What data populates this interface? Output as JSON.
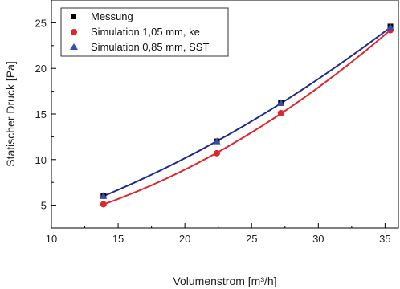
{
  "chart_data": {
    "type": "scatter",
    "xlabel": "Volumenstrom [m³/h]",
    "ylabel": "Statischer Druck [Pa]",
    "xlim": [
      10,
      36
    ],
    "ylim": [
      2.5,
      27.5
    ],
    "xticks": [
      10,
      15,
      20,
      25,
      30,
      35
    ],
    "yticks": [
      5,
      10,
      15,
      20,
      25
    ],
    "grid": false,
    "legend_position": "top-left",
    "series": [
      {
        "name": "Messung",
        "marker": "square",
        "color": "#000000",
        "x": [
          13.9,
          22.4,
          27.2,
          35.4
        ],
        "y": [
          6.0,
          12.0,
          16.2,
          24.6
        ]
      },
      {
        "name": "Simulation 1,05 mm, ke",
        "marker": "circle",
        "color": "#e0262b",
        "line_color": "#e0262b",
        "x": [
          13.9,
          22.4,
          27.2,
          35.4
        ],
        "y": [
          5.1,
          10.7,
          15.1,
          24.2
        ]
      },
      {
        "name": "Simulation 0,85 mm, SST",
        "marker": "triangle",
        "color": "#3a4bb0",
        "line_color": "#1f2a8c",
        "x": [
          13.9,
          22.4,
          27.2,
          35.4
        ],
        "y": [
          6.0,
          12.0,
          16.2,
          24.5
        ]
      }
    ]
  }
}
